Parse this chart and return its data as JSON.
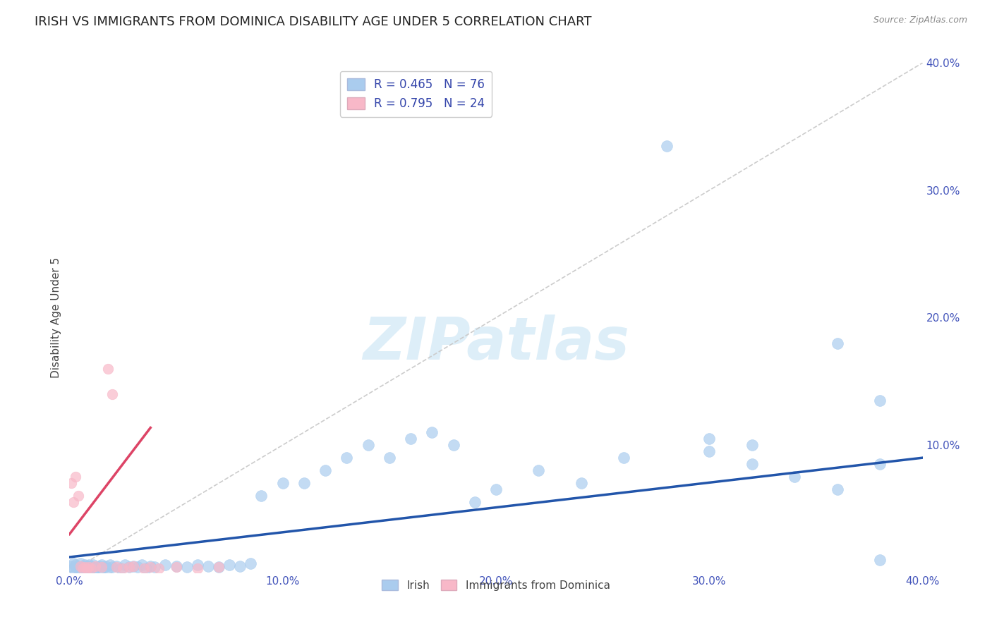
{
  "title": "IRISH VS IMMIGRANTS FROM DOMINICA DISABILITY AGE UNDER 5 CORRELATION CHART",
  "source": "Source: ZipAtlas.com",
  "ylabel": "Disability Age Under 5",
  "xlim": [
    0.0,
    0.4
  ],
  "ylim": [
    0.0,
    0.4
  ],
  "irish_R": 0.465,
  "irish_N": 76,
  "dominica_R": 0.795,
  "dominica_N": 24,
  "irish_color": "#aaccee",
  "irish_edge_color": "#aaccee",
  "irish_line_color": "#2255aa",
  "dominica_color": "#f8b8c8",
  "dominica_edge_color": "#f8b8c8",
  "dominica_line_color": "#dd4466",
  "ref_line_color": "#cccccc",
  "watermark_color": "#ddeef8",
  "title_color": "#222222",
  "source_color": "#888888",
  "tick_color": "#4455bb",
  "ylabel_color": "#444444",
  "legend_text_color": "#3344aa",
  "bottom_legend_text_color": "#444444",
  "title_fontsize": 13,
  "axis_label_fontsize": 11,
  "tick_fontsize": 11,
  "legend_fontsize": 12,
  "source_fontsize": 9,
  "watermark_fontsize": 60,
  "irish_slope": 0.195,
  "irish_intercept": 0.012,
  "dom_slope": 2.2,
  "dom_intercept": 0.03,
  "irish_x": [
    0.001,
    0.002,
    0.002,
    0.003,
    0.003,
    0.004,
    0.004,
    0.005,
    0.005,
    0.006,
    0.006,
    0.007,
    0.007,
    0.008,
    0.008,
    0.009,
    0.009,
    0.01,
    0.01,
    0.011,
    0.011,
    0.012,
    0.013,
    0.014,
    0.015,
    0.015,
    0.016,
    0.017,
    0.018,
    0.019,
    0.02,
    0.022,
    0.024,
    0.026,
    0.028,
    0.03,
    0.032,
    0.034,
    0.036,
    0.038,
    0.04,
    0.045,
    0.05,
    0.055,
    0.06,
    0.065,
    0.07,
    0.075,
    0.08,
    0.085,
    0.09,
    0.1,
    0.11,
    0.12,
    0.13,
    0.14,
    0.15,
    0.16,
    0.17,
    0.18,
    0.19,
    0.2,
    0.22,
    0.24,
    0.26,
    0.28,
    0.3,
    0.32,
    0.34,
    0.36,
    0.38,
    0.38,
    0.32,
    0.36,
    0.3,
    0.38
  ],
  "irish_y": [
    0.005,
    0.003,
    0.007,
    0.004,
    0.006,
    0.003,
    0.005,
    0.004,
    0.007,
    0.003,
    0.005,
    0.004,
    0.006,
    0.003,
    0.005,
    0.004,
    0.006,
    0.003,
    0.005,
    0.004,
    0.006,
    0.003,
    0.004,
    0.005,
    0.003,
    0.006,
    0.004,
    0.005,
    0.003,
    0.006,
    0.004,
    0.005,
    0.003,
    0.006,
    0.004,
    0.005,
    0.004,
    0.006,
    0.003,
    0.005,
    0.004,
    0.006,
    0.005,
    0.004,
    0.006,
    0.005,
    0.004,
    0.006,
    0.005,
    0.007,
    0.06,
    0.07,
    0.07,
    0.08,
    0.09,
    0.1,
    0.09,
    0.105,
    0.11,
    0.1,
    0.055,
    0.065,
    0.08,
    0.07,
    0.09,
    0.335,
    0.095,
    0.085,
    0.075,
    0.065,
    0.085,
    0.135,
    0.1,
    0.18,
    0.105,
    0.01
  ],
  "dom_x": [
    0.001,
    0.002,
    0.003,
    0.004,
    0.005,
    0.006,
    0.007,
    0.008,
    0.009,
    0.01,
    0.012,
    0.015,
    0.018,
    0.02,
    0.022,
    0.025,
    0.028,
    0.03,
    0.035,
    0.038,
    0.042,
    0.05,
    0.06,
    0.07
  ],
  "dom_y": [
    0.07,
    0.055,
    0.075,
    0.06,
    0.005,
    0.003,
    0.004,
    0.003,
    0.004,
    0.003,
    0.005,
    0.004,
    0.16,
    0.14,
    0.004,
    0.003,
    0.004,
    0.005,
    0.003,
    0.004,
    0.003,
    0.004,
    0.003,
    0.004
  ]
}
